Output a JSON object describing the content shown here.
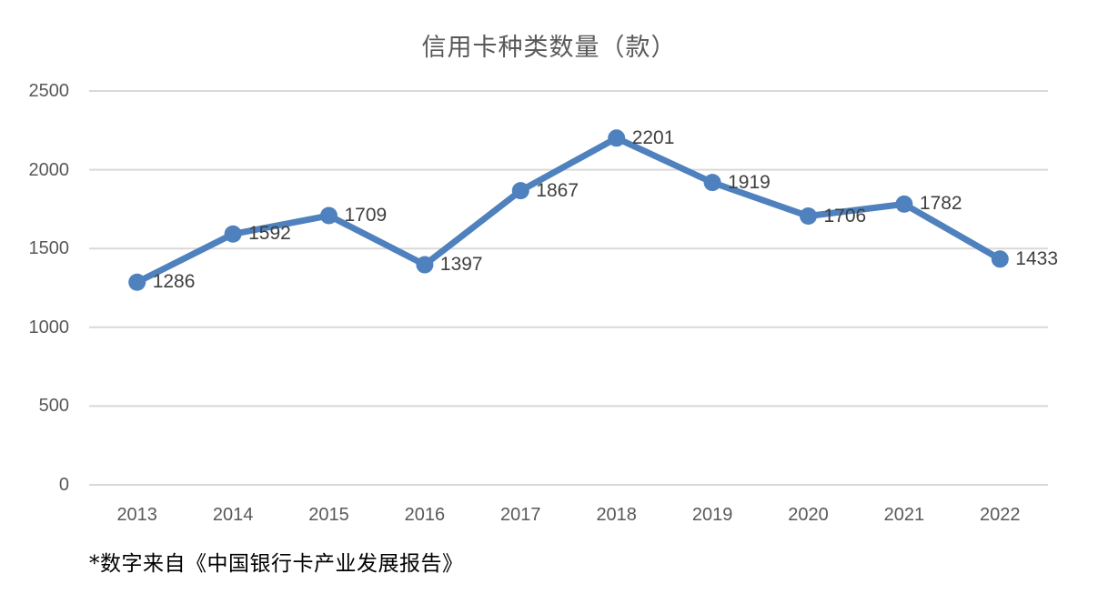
{
  "chart_data": {
    "type": "line",
    "title": "信用卡种类数量（款）",
    "categories": [
      "2013",
      "2014",
      "2015",
      "2016",
      "2017",
      "2018",
      "2019",
      "2020",
      "2021",
      "2022"
    ],
    "series": [
      {
        "name": "信用卡种类数量",
        "values": [
          1286,
          1592,
          1709,
          1397,
          1867,
          2201,
          1919,
          1706,
          1782,
          1433
        ]
      }
    ],
    "data_labels": [
      1286,
      1592,
      1709,
      1397,
      1867,
      2201,
      1919,
      1706,
      1782,
      1433
    ],
    "xlabel": "",
    "ylabel": "",
    "ylim": [
      0,
      2500
    ],
    "yticks": [
      0,
      500,
      1000,
      1500,
      2000,
      2500
    ],
    "grid": true,
    "legend_position": "none",
    "footnote": "*数字来自《中国银行卡产业发展报告》",
    "colors": {
      "line": "#4e81bd",
      "marker": "#4e81bd",
      "gridline": "#d9d9d9",
      "axis_label": "#595959",
      "data_label": "#3f3f3f",
      "title": "#595959",
      "footnote": "#000000",
      "background": "#ffffff"
    }
  }
}
